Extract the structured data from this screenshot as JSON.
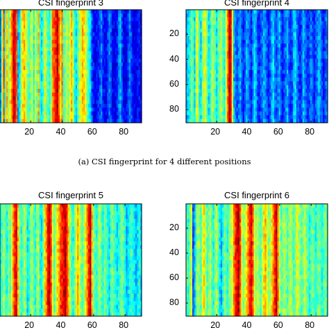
{
  "captions": {
    "a": "(a) CSI fingerprint for 4 different positions"
  },
  "colormap": [
    "#00008f",
    "#0000ff",
    "#0080ff",
    "#00ffff",
    "#80ff80",
    "#ffff00",
    "#ff8000",
    "#ff0000",
    "#800000"
  ],
  "chart_data": [
    {
      "type": "heatmap",
      "title": "CSI fingerprint 3",
      "x_range": [
        1,
        90
      ],
      "y_range": [
        1,
        90
      ],
      "xticks": [
        20,
        40,
        60,
        80
      ],
      "yticks": [],
      "grid": false,
      "column_levels": [
        0.3,
        0.55,
        0.8,
        0.45,
        0.7,
        0.5,
        0.65,
        0.75,
        0.9,
        0.9,
        0.8,
        0.3,
        0.35,
        0.55,
        0.65,
        0.7,
        0.6,
        0.5,
        0.45,
        0.5,
        0.6,
        0.4,
        0.55,
        0.5,
        0.7,
        0.4,
        0.35,
        0.45,
        0.6,
        0.5,
        0.45,
        0.4,
        0.55,
        0.75,
        0.8,
        0.85,
        0.95,
        0.8,
        0.65,
        0.75,
        0.45,
        0.5,
        0.55,
        0.5,
        0.6,
        0.7,
        0.55,
        0.4,
        0.35,
        0.45,
        0.55,
        0.6,
        0.7,
        0.65,
        0.6,
        0.5,
        0.4,
        0.35,
        0.2,
        0.15,
        0.1,
        0.12,
        0.15,
        0.2,
        0.25,
        0.15,
        0.12,
        0.1,
        0.18,
        0.25,
        0.2,
        0.12,
        0.1,
        0.1,
        0.15,
        0.25,
        0.3,
        0.2,
        0.12,
        0.1,
        0.12,
        0.18,
        0.25,
        0.2,
        0.12,
        0.1,
        0.1,
        0.12,
        0.15,
        0.12
      ]
    },
    {
      "type": "heatmap",
      "title": "CSI fingerprint 4",
      "x_range": [
        1,
        90
      ],
      "y_range": [
        1,
        90
      ],
      "xticks": [
        20,
        40,
        60,
        80
      ],
      "yticks": [
        20,
        40,
        60,
        80
      ],
      "grid": false,
      "column_levels": [
        0.3,
        0.35,
        0.4,
        0.5,
        0.45,
        0.35,
        0.55,
        0.6,
        0.4,
        0.35,
        0.5,
        0.55,
        0.6,
        0.45,
        0.35,
        0.4,
        0.55,
        0.5,
        0.45,
        0.35,
        0.45,
        0.5,
        0.55,
        0.45,
        0.4,
        0.6,
        0.75,
        0.95,
        0.9,
        0.6,
        0.3,
        0.25,
        0.2,
        0.25,
        0.3,
        0.2,
        0.15,
        0.2,
        0.3,
        0.25,
        0.2,
        0.15,
        0.25,
        0.35,
        0.3,
        0.2,
        0.15,
        0.2,
        0.25,
        0.3,
        0.25,
        0.2,
        0.15,
        0.2,
        0.3,
        0.35,
        0.25,
        0.2,
        0.25,
        0.3,
        0.2,
        0.15,
        0.2,
        0.25,
        0.3,
        0.2,
        0.15,
        0.2,
        0.3,
        0.35,
        0.25,
        0.2,
        0.15,
        0.2,
        0.3,
        0.25,
        0.2,
        0.15,
        0.2,
        0.25,
        0.2,
        0.15,
        0.2,
        0.25,
        0.3,
        0.25,
        0.2,
        0.15,
        0.2,
        0.25
      ]
    },
    {
      "type": "heatmap",
      "title": "CSI fingerprint 5",
      "x_range": [
        1,
        90
      ],
      "y_range": [
        1,
        90
      ],
      "xticks": [
        20,
        40,
        60,
        80
      ],
      "yticks": [],
      "grid": false,
      "column_levels": [
        0.4,
        0.45,
        0.55,
        0.45,
        0.4,
        0.5,
        0.45,
        0.6,
        0.75,
        0.85,
        0.9,
        0.7,
        0.5,
        0.4,
        0.45,
        0.55,
        0.5,
        0.35,
        0.4,
        0.5,
        0.55,
        0.45,
        0.4,
        0.5,
        0.55,
        0.4,
        0.35,
        0.5,
        0.65,
        0.75,
        0.9,
        0.95,
        0.8,
        0.6,
        0.45,
        0.55,
        0.65,
        0.7,
        0.8,
        0.85,
        0.9,
        0.95,
        0.85,
        0.7,
        0.55,
        0.45,
        0.4,
        0.5,
        0.6,
        0.7,
        0.6,
        0.5,
        0.45,
        0.55,
        0.65,
        0.75,
        0.85,
        0.95,
        0.7,
        0.5,
        0.45,
        0.4,
        0.5,
        0.55,
        0.45,
        0.4,
        0.5,
        0.45,
        0.4,
        0.35,
        0.45,
        0.5,
        0.45,
        0.4,
        0.35,
        0.4,
        0.45,
        0.5,
        0.45,
        0.4,
        0.3,
        0.35,
        0.4,
        0.45,
        0.4,
        0.35,
        0.3,
        0.35,
        0.4,
        0.35
      ]
    },
    {
      "type": "heatmap",
      "title": "CSI fingerprint 6",
      "x_range": [
        1,
        90
      ],
      "y_range": [
        1,
        90
      ],
      "xticks": [
        20,
        40,
        60,
        80
      ],
      "yticks": [
        20,
        40,
        60,
        80
      ],
      "grid": false,
      "column_levels": [
        0.45,
        0.4,
        0.5,
        0.6,
        0.2,
        0.3,
        0.45,
        0.55,
        0.5,
        0.45,
        0.6,
        0.65,
        0.55,
        0.45,
        0.5,
        0.55,
        0.45,
        0.4,
        0.5,
        0.55,
        0.45,
        0.35,
        0.3,
        0.4,
        0.5,
        0.45,
        0.4,
        0.5,
        0.55,
        0.6,
        0.75,
        0.85,
        0.9,
        0.95,
        0.8,
        0.6,
        0.5,
        0.55,
        0.65,
        0.75,
        0.85,
        0.9,
        0.8,
        0.6,
        0.5,
        0.55,
        0.5,
        0.45,
        0.55,
        0.65,
        0.7,
        0.6,
        0.5,
        0.55,
        0.65,
        0.75,
        0.85,
        0.95,
        0.75,
        0.55,
        0.45,
        0.5,
        0.55,
        0.5,
        0.45,
        0.5,
        0.55,
        0.5,
        0.45,
        0.5,
        0.6,
        0.55,
        0.5,
        0.45,
        0.5,
        0.55,
        0.5,
        0.45,
        0.4,
        0.45,
        0.5,
        0.45,
        0.4,
        0.45,
        0.5,
        0.45,
        0.4,
        0.45,
        0.5,
        0.45
      ]
    }
  ]
}
